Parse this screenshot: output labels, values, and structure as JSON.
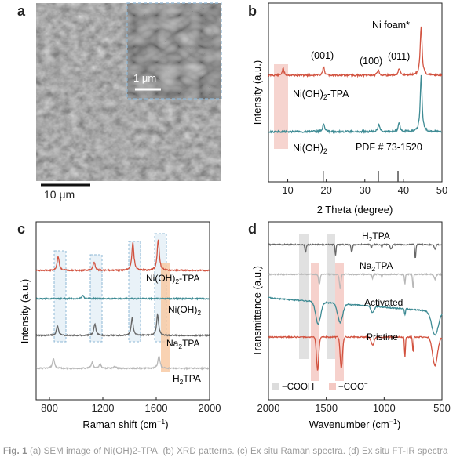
{
  "panel_labels": {
    "a": "a",
    "b": "b",
    "c": "c",
    "d": "d"
  },
  "panel_a": {
    "inset_scalebar": "1 μm",
    "main_scalebar": "10 μm"
  },
  "panel_b": {
    "ylabel": "Intensity (a.u.)",
    "xlabel": "2 Theta (degree)",
    "annotations": {
      "ni_foam": "Ni foam*",
      "p001": "(001)",
      "p100": "(100)",
      "p011": "(011)",
      "pdf": "PDF # 73-1520"
    },
    "series_labels": {
      "top": "Ni(OH)",
      "top_sub": "2",
      "top_suffix": "-TPA",
      "bottom": "Ni(OH)",
      "bottom_sub": "2"
    }
  },
  "panel_c": {
    "ylabel": "Intensity (a.u.)",
    "xlabel_main": "Raman shift (cm",
    "xlabel_sup": "−1",
    "xlabel_end": ")",
    "series_labels": {
      "s1": "Ni(OH)",
      "s1_sub": "2",
      "s1_suffix": "-TPA",
      "s2": "Ni(OH)",
      "s2_sub": "2",
      "s3": "Na",
      "s3_sub": "2",
      "s3_suffix": "TPA",
      "s4": "H",
      "s4_sub": "2",
      "s4_suffix": "TPA"
    }
  },
  "panel_d": {
    "ylabel": "Transmittance (a.u.)",
    "xlabel_main": "Wavenumber (cm",
    "xlabel_sup": "−1",
    "xlabel_end": ")",
    "series_labels": {
      "s1": "H",
      "s1_sub": "2",
      "s1_suffix": "TPA",
      "s2": "Na",
      "s2_sub": "2",
      "s2_suffix": "TPA",
      "s3": "Activated",
      "s4": "Pristine"
    },
    "legend": {
      "cooh": "−COOH",
      "coo": "−COO",
      "coo_sup": "−"
    }
  },
  "caption": {
    "fig": "Fig. 1",
    "text": "(a) SEM image of Ni(OH)2-TPA. (b) XRD patterns. (c) Ex situ Raman spectra. (d) Ex situ FT-IR spectra"
  },
  "colors": {
    "red": "#d2523f",
    "teal": "#3e8b94",
    "dark_gray": "#666666",
    "light_gray": "#b8b8b8",
    "pink_band": "#f4c9c3",
    "gray_band": "#dcdcdc",
    "orange_band": "#f7c79f",
    "blue_box": "#8fb8d6"
  },
  "chart_data": [
    {
      "type": "line",
      "panel": "b",
      "xlabel": "2 Theta (degree)",
      "ylabel": "Intensity (a.u.)",
      "xlim": [
        5,
        50
      ],
      "xticks": [
        10,
        20,
        30,
        40,
        50
      ],
      "series": [
        {
          "name": "Ni(OH)2-TPA",
          "color": "#d2523f",
          "peaks": [
            {
              "x": 8.8,
              "h": 0.45
            },
            {
              "x": 19.3,
              "h": 0.55
            },
            {
              "x": 33.5,
              "h": 0.35
            },
            {
              "x": 38.9,
              "h": 0.45
            },
            {
              "x": 44.6,
              "h": 3.5
            }
          ]
        },
        {
          "name": "Ni(OH)2",
          "color": "#3e8b94",
          "peaks": [
            {
              "x": 19.3,
              "h": 0.6
            },
            {
              "x": 33.6,
              "h": 0.55
            },
            {
              "x": 38.9,
              "h": 0.65
            },
            {
              "x": 44.6,
              "h": 4.0
            }
          ]
        }
      ],
      "reference_sticks": [
        19.2,
        33.5,
        38.6
      ]
    },
    {
      "type": "line",
      "panel": "c",
      "xlabel": "Raman shift (cm−1)",
      "ylabel": "Intensity (a.u.)",
      "xlim": [
        700,
        2000
      ],
      "xticks": [
        800,
        1200,
        1600,
        2000
      ],
      "series": [
        {
          "name": "Ni(OH)2-TPA",
          "color": "#d2523f",
          "peaks": [
            {
              "x": 865,
              "h": 0.5
            },
            {
              "x": 1135,
              "h": 0.3
            },
            {
              "x": 1425,
              "h": 1.0
            },
            {
              "x": 1615,
              "h": 1.1
            }
          ]
        },
        {
          "name": "Ni(OH)2",
          "color": "#3e8b94",
          "peaks": [
            {
              "x": 1050,
              "h": 0.15
            }
          ]
        },
        {
          "name": "Na2TPA",
          "color": "#666666",
          "peaks": [
            {
              "x": 860,
              "h": 0.45
            },
            {
              "x": 1140,
              "h": 0.55
            },
            {
              "x": 1420,
              "h": 0.8
            },
            {
              "x": 1610,
              "h": 0.95
            }
          ]
        },
        {
          "name": "H2TPA",
          "color": "#b8b8b8",
          "peaks": [
            {
              "x": 830,
              "h": 0.7
            },
            {
              "x": 1120,
              "h": 0.4
            },
            {
              "x": 1180,
              "h": 0.3
            },
            {
              "x": 1290,
              "h": 0.15
            },
            {
              "x": 1620,
              "h": 0.9
            }
          ]
        }
      ]
    },
    {
      "type": "line",
      "panel": "d",
      "xlabel": "Wavenumber (cm−1)",
      "ylabel": "Transmittance (a.u.)",
      "xlim": [
        2000,
        500
      ],
      "xticks": [
        2000,
        1500,
        1000,
        500
      ],
      "series": [
        {
          "name": "H2TPA",
          "color": "#666666"
        },
        {
          "name": "Na2TPA",
          "color": "#b8b8b8"
        },
        {
          "name": "Activated",
          "color": "#3e8b94"
        },
        {
          "name": "Pristine",
          "color": "#d2523f"
        }
      ],
      "legend": [
        "−COOH",
        "−COO−"
      ]
    }
  ]
}
